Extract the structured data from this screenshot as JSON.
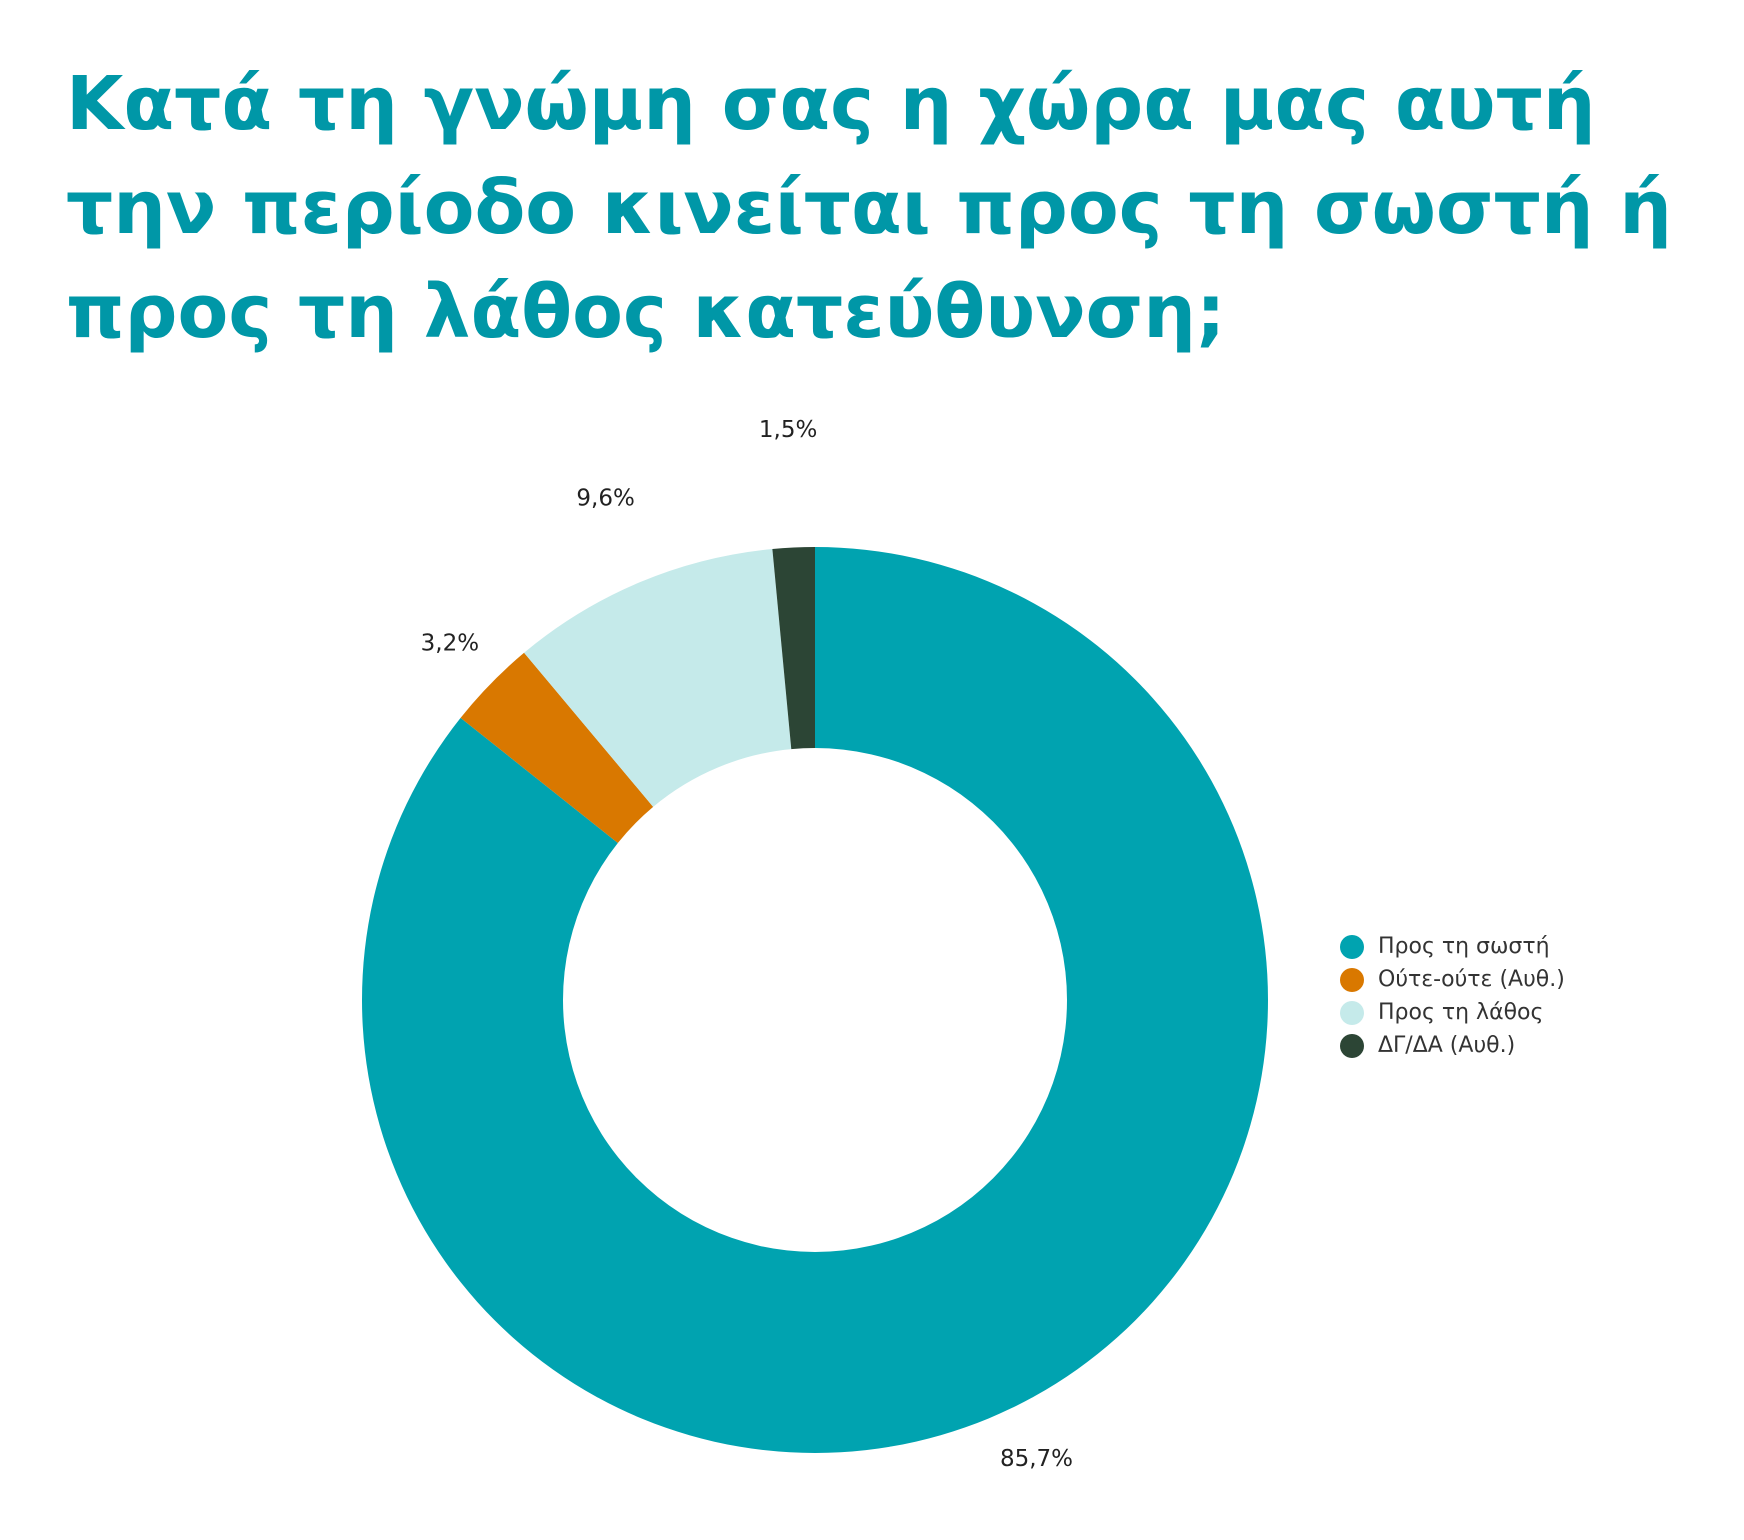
{
  "title": "Κατά τη γνώμη σας η χώρα μας αυτή την περίοδο κινείται προς τη σωστή ή προς τη λάθος κατεύθυνση;",
  "chart_data": {
    "type": "pie",
    "style": "donut",
    "title": "Κατά τη γνώμη σας η χώρα μας αυτή την περίοδο κινείται προς τη σωστή ή προς τη λάθος κατεύθυνση;",
    "categories": [
      "Προς τη σωστή",
      "Ούτε-ούτε (Αυθ.)",
      "Προς τη λάθος",
      "ΔΓ/ΔΑ (Αυθ.)"
    ],
    "values": [
      85.7,
      3.2,
      9.6,
      1.5
    ],
    "value_labels": [
      "85,7%",
      "3,2%",
      "9,6%",
      "1,5%"
    ],
    "colors": [
      "#00a3b0",
      "#d97800",
      "#c5eaea",
      "#2c4535"
    ],
    "legend_position": "right",
    "start_angle": "top",
    "direction": "clockwise"
  }
}
